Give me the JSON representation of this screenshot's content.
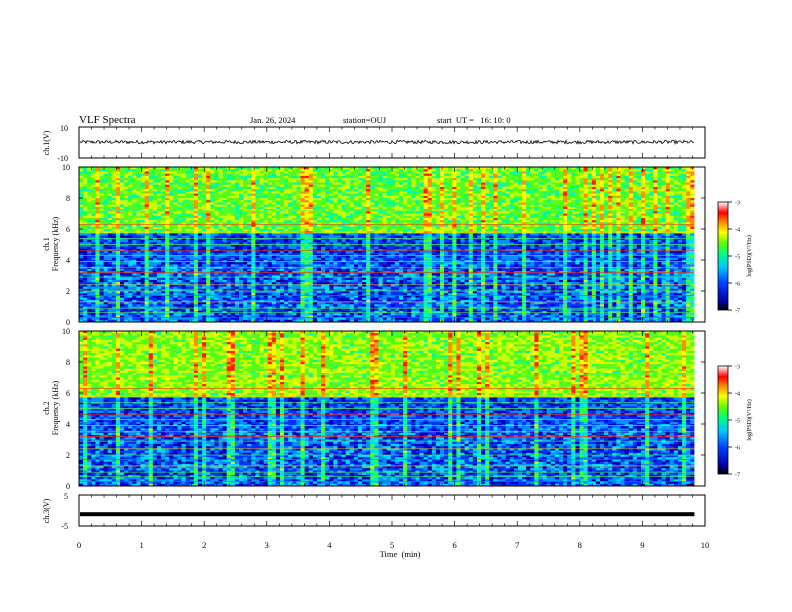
{
  "header": {
    "title": "VLF Spectra",
    "date": "Jan. 26, 2024",
    "station": "station=OUJ",
    "start": "start  UT =   16: 10: 0"
  },
  "chart_data": [
    {
      "type": "line",
      "panel": "ch1-waveform",
      "ylabel": "ch.1(V)",
      "ylim": [
        -10,
        10
      ],
      "y_ticks": [
        "10",
        "-10"
      ],
      "x": [
        0,
        9.83
      ],
      "values_approx_level": 0.3,
      "line_color": "#000000"
    },
    {
      "type": "heatmap",
      "panel": "ch1-spectrogram",
      "ylabel": "ch.1\nFrequency (kHz)",
      "ylim": [
        0,
        10
      ],
      "y_ticks": [
        "0",
        "2",
        "4",
        "6",
        "8",
        "10"
      ],
      "xlim": [
        0,
        9.83
      ],
      "colorbar": {
        "label": "log(PSD)(V²/Hz)",
        "range": [
          -7,
          -3
        ],
        "ticks": [
          "-3",
          "-4",
          "-5",
          "-6",
          "-7"
        ]
      }
    },
    {
      "type": "heatmap",
      "panel": "ch2-spectrogram",
      "ylabel": "ch.2\nFrequency (kHz)",
      "ylim": [
        0,
        10
      ],
      "y_ticks": [
        "0",
        "2",
        "4",
        "6",
        "8",
        "10"
      ],
      "xlim": [
        0,
        9.83
      ],
      "colorbar": {
        "label": "log(PSD)(V²/Hz)",
        "range": [
          -7,
          -3
        ],
        "ticks": [
          "-3",
          "-4",
          "-5",
          "-6",
          "-7"
        ]
      }
    },
    {
      "type": "line",
      "panel": "ch3-waveform",
      "ylabel": "ch.3(V)",
      "ylim": [
        -5,
        5
      ],
      "y_ticks": [
        "5",
        "-5"
      ],
      "x": [
        0,
        9.83
      ],
      "values_approx_level": -1.2,
      "line_color": "#000000"
    }
  ],
  "x_axis": {
    "label": "Time  (min)",
    "ticks": [
      "0",
      "1",
      "2",
      "3",
      "4",
      "5",
      "6",
      "7",
      "8",
      "9",
      "10"
    ],
    "range": [
      0,
      10
    ]
  },
  "colors": {
    "colormap": [
      "#00005a",
      "#0000c8",
      "#0050ff",
      "#00c8ff",
      "#00ff96",
      "#64ff00",
      "#ffff00",
      "#ff8c00",
      "#ff0000",
      "#ffffff"
    ]
  }
}
